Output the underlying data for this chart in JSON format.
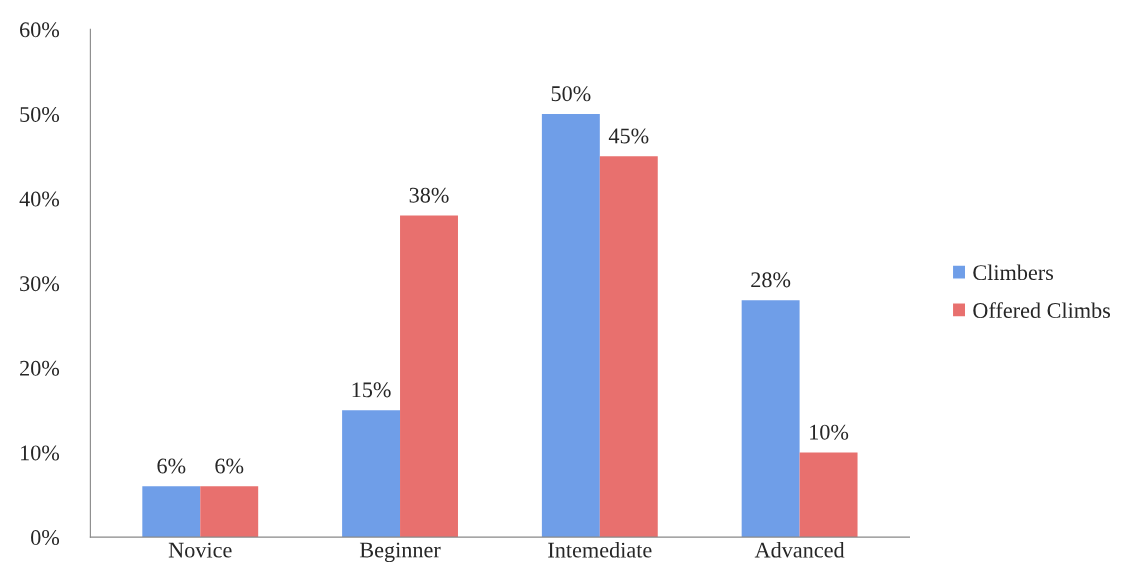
{
  "chart_data": {
    "type": "bar",
    "categories": [
      "Novice",
      "Beginner",
      "Intemediate",
      "Advanced"
    ],
    "series": [
      {
        "name": "Climbers",
        "color": "#6f9ee8",
        "values": [
          6,
          15,
          50,
          28
        ],
        "value_labels": [
          "6%",
          "15%",
          "50%",
          "28%"
        ]
      },
      {
        "name": "Offered Climbs",
        "color": "#e8706e",
        "values": [
          6,
          38,
          45,
          10
        ],
        "value_labels": [
          "6%",
          "38%",
          "45%",
          "10%"
        ]
      }
    ],
    "ylim": [
      0,
      60
    ],
    "yticks": [
      {
        "value": 0,
        "label": "0%"
      },
      {
        "value": 10,
        "label": "10%"
      },
      {
        "value": 20,
        "label": "20%"
      },
      {
        "value": 30,
        "label": "30%"
      },
      {
        "value": 40,
        "label": "40%"
      },
      {
        "value": 50,
        "label": "50%"
      },
      {
        "value": 60,
        "label": "60%"
      }
    ],
    "grid": false,
    "legend": "right"
  }
}
